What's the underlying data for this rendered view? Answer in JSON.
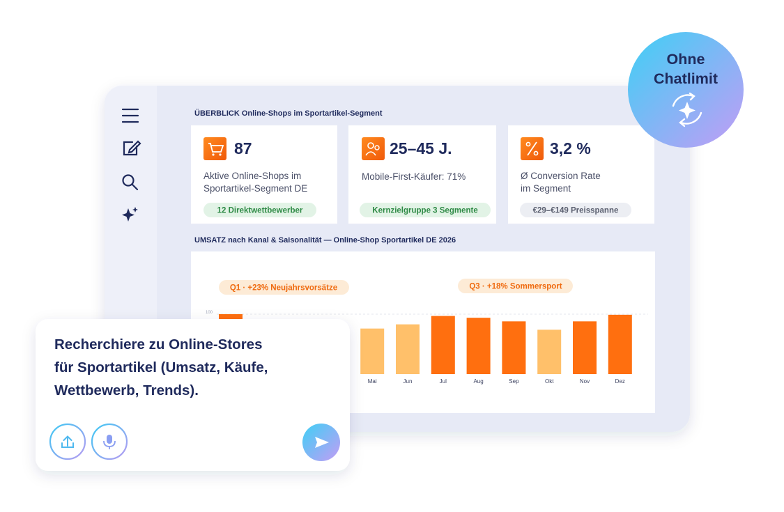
{
  "header": {
    "title": "ÜBERBLICK Online-Shops im Sportartikel-Segment"
  },
  "cards": [
    {
      "value": "87",
      "description": [
        "Aktive Online-Shops im",
        "Sportartikel-Segment DE"
      ],
      "tag": "12 Direktwettbewerber"
    },
    {
      "value": "25–45 J.",
      "description": [
        "Mobile-First-Käufer: 71%"
      ],
      "tag": "Kernzielgruppe 3 Segmente"
    },
    {
      "value": "3,2 %",
      "description": [
        "Ø Conversion Rate",
        "im Segment"
      ],
      "tag": "€29–€149 Preisspanne"
    }
  ],
  "chart_data": {
    "type": "bar",
    "title": "UMSATZ nach Kanal & Saisonalität — Online-Shop Sportartikel DE 2026",
    "categories": [
      null,
      null,
      null,
      null,
      "Mai",
      "Jun",
      "Jul",
      "Aug",
      "Sep",
      "Okt",
      "Nov",
      "Dez"
    ],
    "values": [
      100,
      null,
      null,
      null,
      76,
      83,
      97,
      94,
      88,
      74,
      88,
      99
    ],
    "colors": [
      "#ff6f0f",
      "#ff6f0f",
      "#ff6f0f",
      "#ff6f0f",
      "#ffc06a",
      "#ffc06a",
      "#ff6f0f",
      "#ff6f0f",
      "#ff6f0f",
      "#ffc06a",
      "#ff6f0f",
      "#ff6f0f"
    ],
    "ylim": [
      0,
      100
    ],
    "yticks": [
      100
    ],
    "grid": true,
    "annotations": [
      "Q1 · +23% Neujahrsvorsätze",
      "Q3 · +18% Sommersport"
    ]
  },
  "chat": {
    "prompt": [
      "Recherchiere zu Online-Stores",
      "für Sportartikel (Umsatz, Käufe,",
      "Wettbewerb, Trends)."
    ]
  },
  "badge": {
    "lines": [
      "Ohne",
      "Chatlimit"
    ]
  }
}
